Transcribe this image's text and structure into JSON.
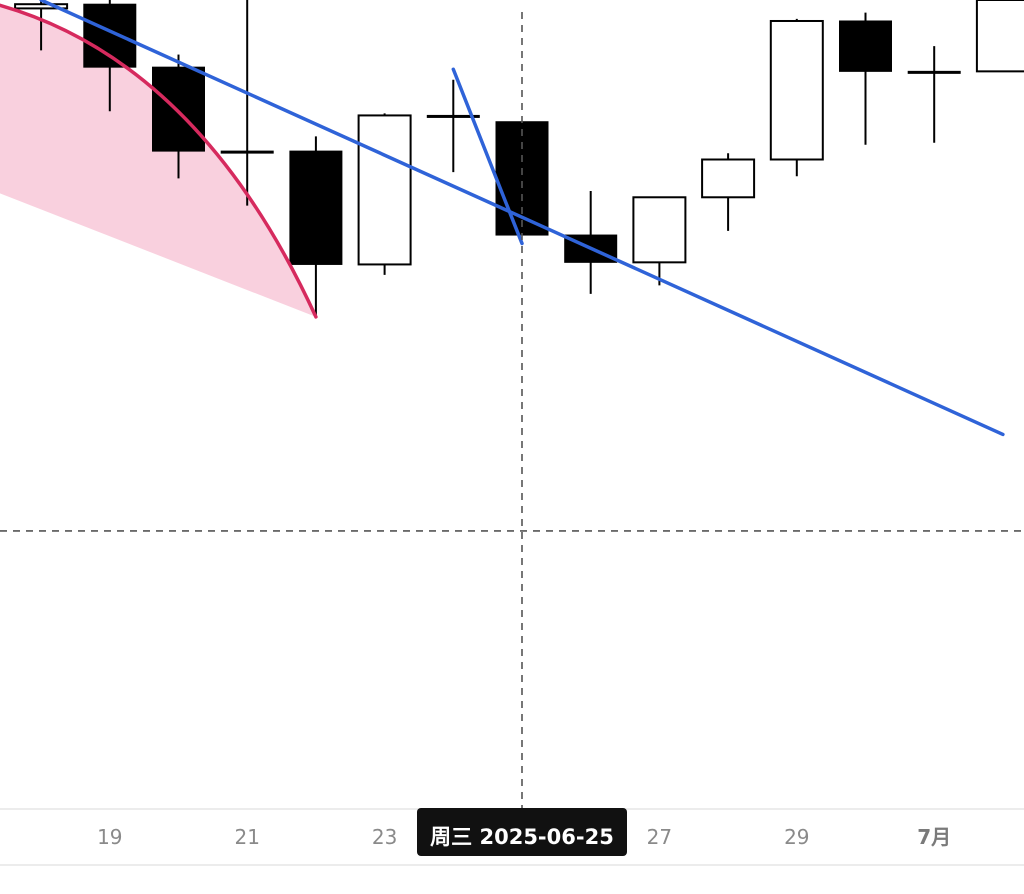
{
  "chart_data": {
    "type": "candlestick",
    "title": "",
    "xlabel": "",
    "ylabel": "",
    "x_ticks": [
      {
        "date": "2025-06-19",
        "label": "19"
      },
      {
        "date": "2025-06-21",
        "label": "21"
      },
      {
        "date": "2025-06-23",
        "label": "23"
      },
      {
        "date": "2025-06-27",
        "label": "27"
      },
      {
        "date": "2025-06-29",
        "label": "29"
      },
      {
        "date": "2025-07-01",
        "label": "7月"
      }
    ],
    "candles": [
      {
        "date": "2025-06-18",
        "open": 99.6,
        "high": 100.0,
        "low": 97.6,
        "close": 99.8
      },
      {
        "date": "2025-06-19",
        "open": 99.8,
        "high": 100.0,
        "low": 94.7,
        "close": 96.8
      },
      {
        "date": "2025-06-20",
        "open": 96.8,
        "high": 97.4,
        "low": 91.5,
        "close": 92.8
      },
      {
        "date": "2025-06-21",
        "open": 92.8,
        "high": 100.0,
        "low": 90.2,
        "close": 92.8
      },
      {
        "date": "2025-06-22",
        "open": 92.8,
        "high": 93.5,
        "low": 84.9,
        "close": 87.4
      },
      {
        "date": "2025-06-23",
        "open": 87.4,
        "high": 94.6,
        "low": 86.9,
        "close": 94.5
      },
      {
        "date": "2025-06-24",
        "open": 94.5,
        "high": 96.2,
        "low": 91.8,
        "close": 94.5
      },
      {
        "date": "2025-06-25",
        "open": 94.2,
        "high": 94.2,
        "low": 88.8,
        "close": 88.8
      },
      {
        "date": "2025-06-26",
        "open": 88.8,
        "high": 90.9,
        "low": 86.0,
        "close": 87.5
      },
      {
        "date": "2025-06-27",
        "open": 87.5,
        "high": 90.4,
        "low": 86.4,
        "close": 90.6
      },
      {
        "date": "2025-06-28",
        "open": 90.6,
        "high": 92.7,
        "low": 89.0,
        "close": 92.4
      },
      {
        "date": "2025-06-29",
        "open": 92.4,
        "high": 99.1,
        "low": 91.6,
        "close": 99.0
      },
      {
        "date": "2025-06-30",
        "open": 99.0,
        "high": 99.4,
        "low": 93.1,
        "close": 96.6
      },
      {
        "date": "2025-07-01",
        "open": 96.6,
        "high": 97.8,
        "low": 93.2,
        "close": 96.6
      },
      {
        "date": "2025-07-02",
        "open": 96.6,
        "high": 100.0,
        "low": 96.6,
        "close": 100.0
      }
    ],
    "drawings": [
      {
        "kind": "trendline",
        "color": "#2f63d8",
        "from": {
          "date": "2025-06-24",
          "price": 96.7
        },
        "to": {
          "date": "2025-06-25",
          "price": 88.4
        }
      },
      {
        "kind": "trendline",
        "color": "#2f63d8",
        "from": {
          "date": "2025-06-18",
          "price": 100.0
        },
        "to": {
          "date": "2025-07-02",
          "price": 79.3
        }
      },
      {
        "kind": "arc",
        "color": "#d62a5e",
        "fill": "#f9d0de",
        "from": {
          "date": "2025-06-17",
          "price": 99.3
        },
        "to": {
          "date": "2025-06-22",
          "price": 84.9
        }
      }
    ],
    "crosshair": {
      "date": "2025-06-25",
      "label": "周三 2025-06-25",
      "price": 74.7
    },
    "ylim": [
      61.5,
      100
    ],
    "grid": false,
    "colors": {
      "up": "#ffffff",
      "down": "#000000",
      "wick": "#000000",
      "trend": "#2f63d8",
      "arc": "#d62a5e",
      "arc_fill": "#f9d0de",
      "crosshair_label_bg": "#111111"
    }
  }
}
